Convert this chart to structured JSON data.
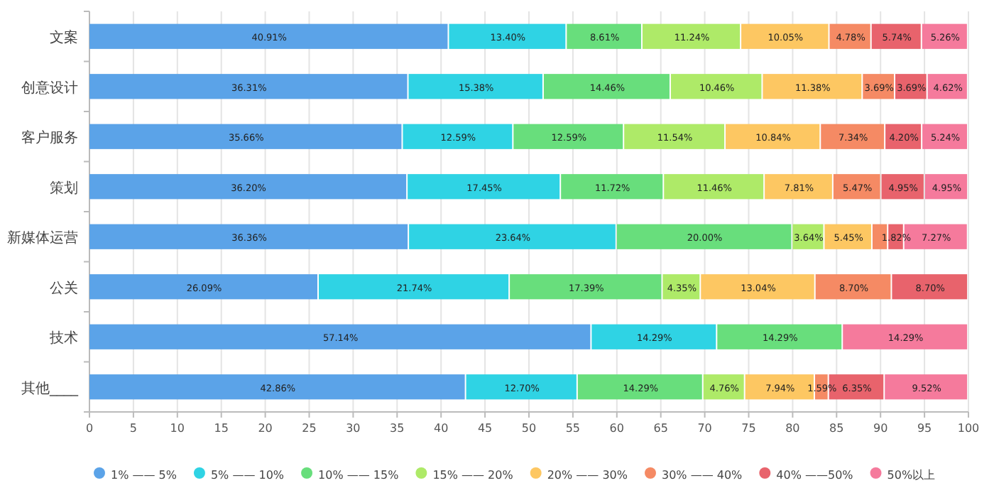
{
  "chart_data": {
    "type": "bar",
    "orientation": "horizontal",
    "stacked": true,
    "categories": [
      "文案",
      "创意设计",
      "客户服务",
      "策划",
      "新媒体运营",
      "公关",
      "技术",
      "其他____"
    ],
    "series": [
      {
        "name": "1% —— 5%",
        "color": "#5ba3e8",
        "values": [
          40.91,
          36.31,
          35.66,
          36.2,
          36.36,
          26.09,
          57.14,
          42.86
        ],
        "value_labels": [
          "40.91%",
          "36.31%",
          "35.66%",
          "36.20%",
          "36.36%",
          "26.09%",
          "57.14%",
          "42.86%"
        ]
      },
      {
        "name": "5% —— 10%",
        "color": "#2fd3e4",
        "values": [
          13.4,
          15.38,
          12.59,
          17.45,
          23.64,
          21.74,
          14.29,
          12.7
        ],
        "value_labels": [
          "13.40%",
          "15.38%",
          "12.59%",
          "17.45%",
          "23.64%",
          "21.74%",
          "14.29%",
          "12.70%"
        ]
      },
      {
        "name": "10% —— 15%",
        "color": "#68de7c",
        "values": [
          8.61,
          14.46,
          12.59,
          11.72,
          20.0,
          17.39,
          14.29,
          14.29
        ],
        "value_labels": [
          "8.61%",
          "14.46%",
          "12.59%",
          "11.72%",
          "20.00%",
          "17.39%",
          "14.29%",
          "14.29%"
        ]
      },
      {
        "name": "15% —— 20%",
        "color": "#aeea68",
        "values": [
          11.24,
          10.46,
          11.54,
          11.46,
          3.64,
          4.35,
          null,
          4.76
        ],
        "value_labels": [
          "11.24%",
          "10.46%",
          "11.54%",
          "11.46%",
          "3.64%",
          "4.35%",
          null,
          "4.76%"
        ]
      },
      {
        "name": "20% —— 30%",
        "color": "#fdc762",
        "values": [
          10.05,
          11.38,
          10.84,
          7.81,
          5.45,
          13.04,
          null,
          7.94
        ],
        "value_labels": [
          "10.05%",
          "11.38%",
          "10.84%",
          "7.81%",
          "5.45%",
          "13.04%",
          null,
          "7.94%"
        ]
      },
      {
        "name": "30% —— 40%",
        "color": "#f58a64",
        "values": [
          4.78,
          3.69,
          7.34,
          5.47,
          1.8,
          8.7,
          null,
          1.59
        ],
        "value_labels": [
          "4.78%",
          "3.69%",
          "7.34%",
          "5.47%",
          null,
          "8.70%",
          null,
          "1.59%"
        ]
      },
      {
        "name": "40% ——50%",
        "color": "#e8636c",
        "values": [
          5.74,
          3.69,
          4.2,
          4.95,
          1.82,
          8.7,
          null,
          6.35
        ],
        "value_labels": [
          "5.74%",
          "3.69%",
          "4.20%",
          "4.95%",
          "1.82%",
          "8.70%",
          null,
          "6.35%"
        ]
      },
      {
        "name": "50%以上",
        "color": "#f57a9c",
        "values": [
          5.26,
          4.62,
          5.24,
          4.95,
          7.27,
          null,
          14.29,
          9.52
        ],
        "value_labels": [
          "5.26%",
          "4.62%",
          "5.24%",
          "4.95%",
          "7.27%",
          null,
          "14.29%",
          "9.52%"
        ]
      }
    ],
    "xlim": [
      0,
      100
    ],
    "xticks": [
      0,
      5,
      10,
      15,
      20,
      25,
      30,
      35,
      40,
      45,
      50,
      55,
      60,
      65,
      70,
      75,
      80,
      85,
      90,
      95,
      100
    ],
    "grid": "x",
    "legend": "bottom"
  }
}
